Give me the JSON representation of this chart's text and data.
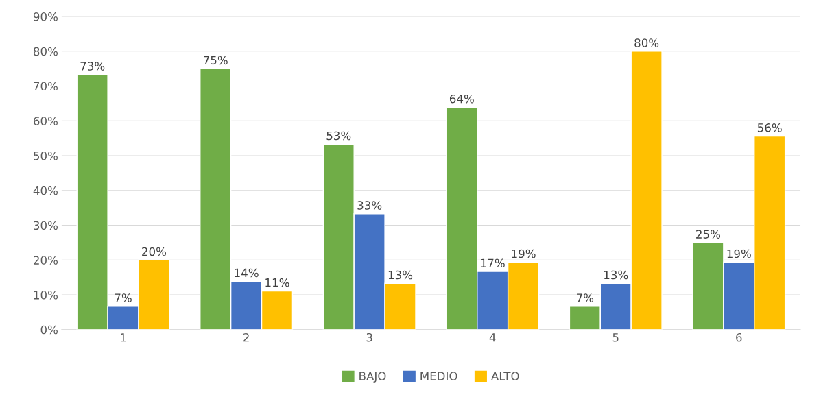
{
  "chart_data": {
    "type": "bar",
    "categories": [
      "1",
      "2",
      "3",
      "4",
      "5",
      "6"
    ],
    "series": [
      {
        "name": "BAJO",
        "color": "#70ad47",
        "values": [
          73.3,
          75,
          53.3,
          63.9,
          6.7,
          25
        ],
        "value_labels": [
          "73%",
          "75%",
          "53%",
          "64%",
          "7%",
          "25%"
        ]
      },
      {
        "name": "MEDIO",
        "color": "#4472c4",
        "values": [
          6.7,
          13.9,
          33.3,
          16.7,
          13.3,
          19.4
        ],
        "value_labels": [
          "7%",
          "14%",
          "33%",
          "17%",
          "13%",
          "19%"
        ]
      },
      {
        "name": "ALTO",
        "color": "#ffc000",
        "values": [
          20,
          11.1,
          13.3,
          19.4,
          80,
          55.6
        ],
        "value_labels": [
          "20%",
          "11%",
          "13%",
          "19%",
          "80%",
          "56%"
        ]
      }
    ],
    "ylim": [
      0,
      90
    ],
    "yticks": [
      {
        "value": 0,
        "label": "0%"
      },
      {
        "value": 10,
        "label": "10%"
      },
      {
        "value": 20,
        "label": "20%"
      },
      {
        "value": 30,
        "label": "30%"
      },
      {
        "value": 40,
        "label": "40%"
      },
      {
        "value": 50,
        "label": "50%"
      },
      {
        "value": 60,
        "label": "60%"
      },
      {
        "value": 70,
        "label": "70%"
      },
      {
        "value": 80,
        "label": "80%"
      },
      {
        "value": 90,
        "label": "90%"
      }
    ],
    "grid": "y",
    "legend": "bottom"
  }
}
